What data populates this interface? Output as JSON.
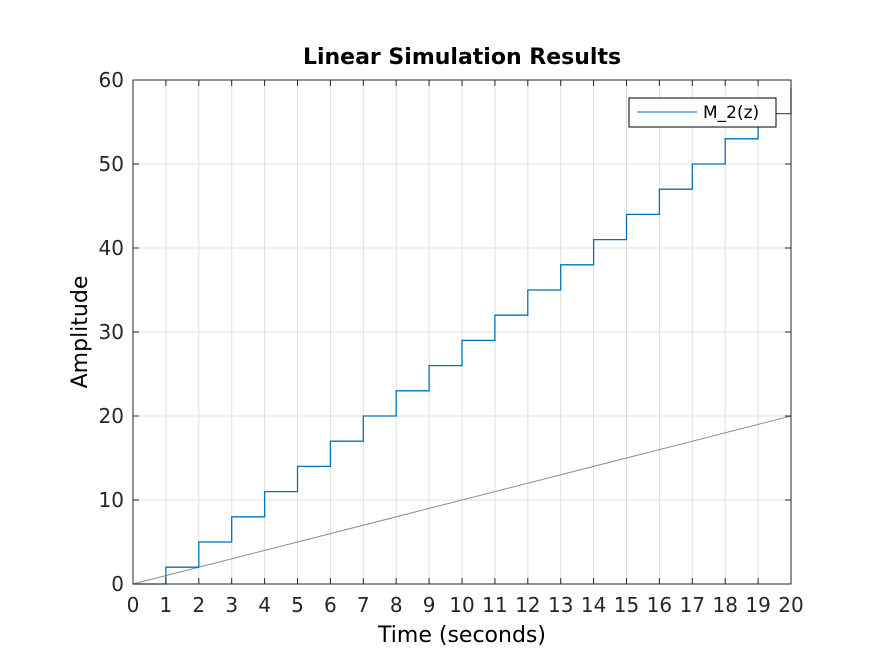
{
  "chart_data": {
    "type": "line",
    "title": "Linear Simulation Results",
    "xlabel": "Time (seconds)",
    "ylabel": "Amplitude",
    "xlim": [
      0,
      20
    ],
    "ylim": [
      0,
      60
    ],
    "xticks": [
      "0",
      "1",
      "2",
      "3",
      "4",
      "5",
      "6",
      "7",
      "8",
      "9",
      "10",
      "11",
      "12",
      "13",
      "14",
      "15",
      "16",
      "17",
      "18",
      "19",
      "20"
    ],
    "yticks": [
      "0",
      "10",
      "20",
      "30",
      "40",
      "50",
      "60"
    ],
    "grid": true,
    "legend_position": "top-right",
    "series": [
      {
        "name": "M_2(z)",
        "style": "stairs",
        "color": "#0072BD",
        "x": [
          0,
          1,
          2,
          3,
          4,
          5,
          6,
          7,
          8,
          9,
          10,
          11,
          12,
          13,
          14,
          15,
          16,
          17,
          18,
          19,
          20
        ],
        "y": [
          0,
          2,
          5,
          8,
          11,
          14,
          17,
          20,
          23,
          26,
          29,
          32,
          35,
          38,
          41,
          44,
          47,
          50,
          53,
          56,
          59
        ]
      },
      {
        "style": "line",
        "color": "#8c8c8c",
        "x": [
          0,
          20
        ],
        "y": [
          0,
          20
        ]
      }
    ]
  }
}
